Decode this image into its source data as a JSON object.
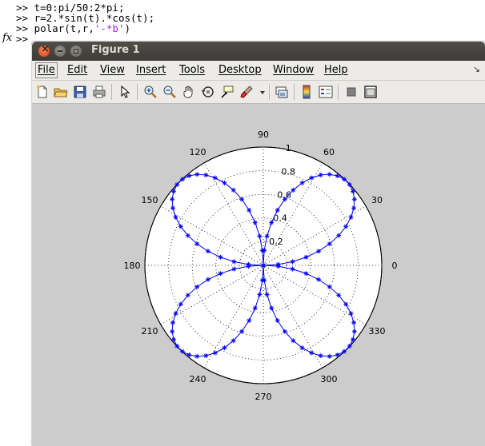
{
  "console": {
    "prompt": ">>",
    "lines": [
      {
        "code": "t=0:pi/50:2*pi;",
        "str": ""
      },
      {
        "code": "r=2.*sin(t).*cos(t);",
        "str": ""
      },
      {
        "code": "polar(t,r,",
        "str": "'-*b'",
        "tail": ")"
      },
      {
        "code": "",
        "str": ""
      }
    ],
    "fx_label": "fx"
  },
  "figure": {
    "title": "Figure 1",
    "menus": [
      "File",
      "Edit",
      "View",
      "Insert",
      "Tools",
      "Desktop",
      "Window",
      "Help"
    ],
    "menu_arrow": "↘",
    "toolbar_icons": [
      "new-figure-icon",
      "open-file-icon",
      "save-icon",
      "print-icon",
      "select-arrow-icon",
      "zoom-in-icon",
      "zoom-out-icon",
      "pan-hand-icon",
      "rotate-3d-icon",
      "data-cursor-icon",
      "brush-icon",
      "brush-dropdown-icon",
      "link-plot-icon",
      "colorbar-icon",
      "legend-icon",
      "hide-plot-tools-icon",
      "show-plot-tools-icon"
    ]
  },
  "chart_data": {
    "type": "scatter",
    "subtype": "polar",
    "expression": "r=2.*sin(t).*cos(t)",
    "t_range": [
      0,
      6.283185307179586
    ],
    "t_step": 0.06283185307179587,
    "line_style": "-*b",
    "color": "#0000ff",
    "rmax": 1,
    "r_ticks": [
      "0.2",
      "0.4",
      "0.6",
      "0.8",
      "1"
    ],
    "theta_ticks": [
      "0",
      "30",
      "60",
      "90",
      "120",
      "150",
      "180",
      "210",
      "240",
      "270",
      "300",
      "330"
    ],
    "grid": "dotted",
    "background": "#ffffff",
    "axes_bg": "#cccccc"
  }
}
